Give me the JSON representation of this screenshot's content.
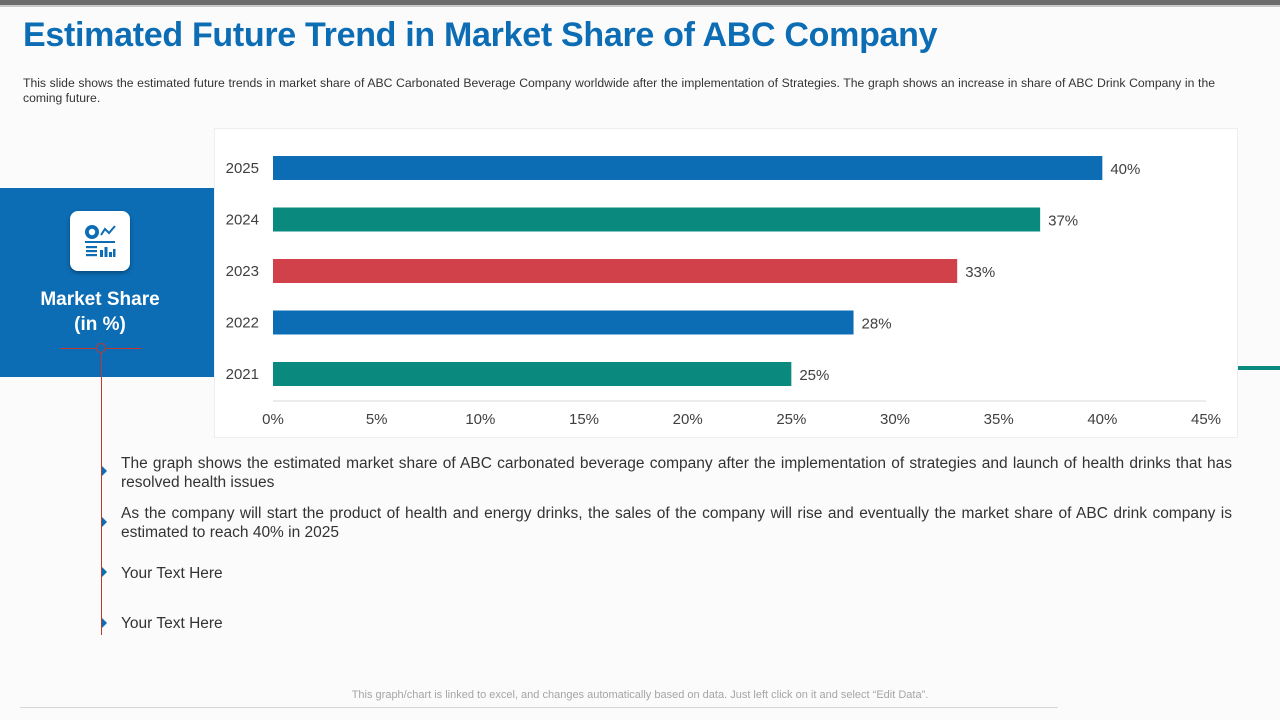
{
  "header": {
    "title": "Estimated Future Trend in Market Share of ABC Company",
    "subtitle": "This slide shows the estimated future trends in market share of ABC Carbonated Beverage Company worldwide after the implementation of Strategies. The graph shows an increase in share of ABC Drink Company in the coming future."
  },
  "side_panel": {
    "icon": "market-chart-icon",
    "title_line1": "Market Share",
    "title_line2": "(in %)"
  },
  "chart_data": {
    "type": "bar",
    "orientation": "horizontal",
    "categories": [
      "2025",
      "2024",
      "2023",
      "2022",
      "2021"
    ],
    "values": [
      40,
      37,
      33,
      28,
      25
    ],
    "value_labels": [
      "40%",
      "37%",
      "33%",
      "28%",
      "25%"
    ],
    "bar_colors": [
      "#0c6db5",
      "#0a8a7e",
      "#d0414a",
      "#0c6db5",
      "#0a8a7e"
    ],
    "x_ticks": [
      0,
      5,
      10,
      15,
      20,
      25,
      30,
      35,
      40,
      45
    ],
    "x_tick_labels": [
      "0%",
      "5%",
      "10%",
      "15%",
      "20%",
      "25%",
      "30%",
      "35%",
      "40%",
      "45%"
    ],
    "xlim": [
      0,
      45
    ],
    "grid": false,
    "legend": "none",
    "title": "",
    "xlabel": "",
    "ylabel": ""
  },
  "bullets": [
    {
      "text": "The graph shows the estimated market share of ABC carbonated beverage company after the implementation of strategies and launch  of health drinks that has resolved health issues"
    },
    {
      "text": "As the company will start the product of health and energy drinks, the sales of the company will rise and eventually  the market share of ABC drink company is estimated to reach 40% in 2025"
    },
    {
      "text": "Your Text Here"
    },
    {
      "text": "Your Text Here"
    }
  ],
  "footer": {
    "note": "This graph/chart is linked to excel,  and changes automatically based on data. Just left click on it and select “Edit Data”."
  },
  "colors": {
    "brand_blue": "#0c6db5",
    "teal": "#0a8a7e",
    "red": "#d0414a",
    "accent_red_line": "#c0392b"
  }
}
